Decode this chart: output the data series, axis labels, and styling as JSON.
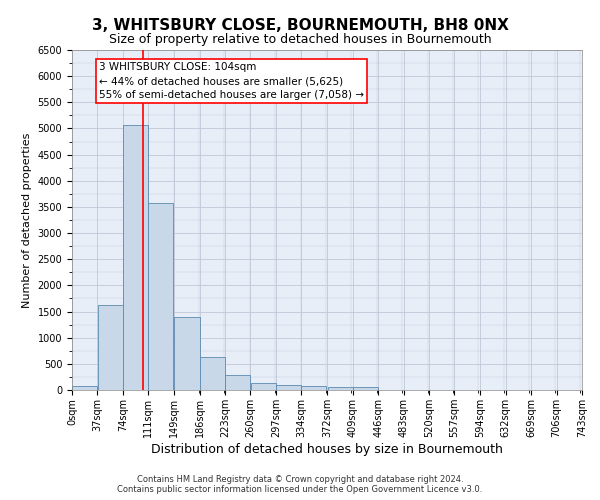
{
  "title": "3, WHITSBURY CLOSE, BOURNEMOUTH, BH8 0NX",
  "subtitle": "Size of property relative to detached houses in Bournemouth",
  "xlabel": "Distribution of detached houses by size in Bournemouth",
  "ylabel": "Number of detached properties",
  "footer_line1": "Contains HM Land Registry data © Crown copyright and database right 2024.",
  "footer_line2": "Contains public sector information licensed under the Open Government Licence v3.0.",
  "bar_edges": [
    0,
    37,
    74,
    111,
    149,
    186,
    223,
    260,
    297,
    334,
    372,
    409,
    446,
    483,
    520,
    557,
    594,
    632,
    669,
    706,
    743
  ],
  "bar_heights": [
    75,
    1625,
    5075,
    3575,
    1400,
    625,
    290,
    135,
    105,
    75,
    50,
    50,
    0,
    0,
    0,
    0,
    0,
    0,
    0,
    0
  ],
  "bar_color": "#c8d8e8",
  "bar_edgecolor": "#5a8ab0",
  "vline_x": 104,
  "vline_color": "red",
  "annotation_text": "3 WHITSBURY CLOSE: 104sqm\n← 44% of detached houses are smaller (5,625)\n55% of semi-detached houses are larger (7,058) →",
  "annotation_box_color": "white",
  "annotation_border_color": "red",
  "ylim": [
    0,
    6500
  ],
  "xlim": [
    0,
    743
  ],
  "grid_color": "#c0c8d8",
  "background_color": "#e8eef8",
  "title_fontsize": 11,
  "subtitle_fontsize": 9,
  "ylabel_fontsize": 8,
  "xlabel_fontsize": 9,
  "annotation_fontsize": 7.5,
  "tick_fontsize": 7,
  "footer_fontsize": 6
}
